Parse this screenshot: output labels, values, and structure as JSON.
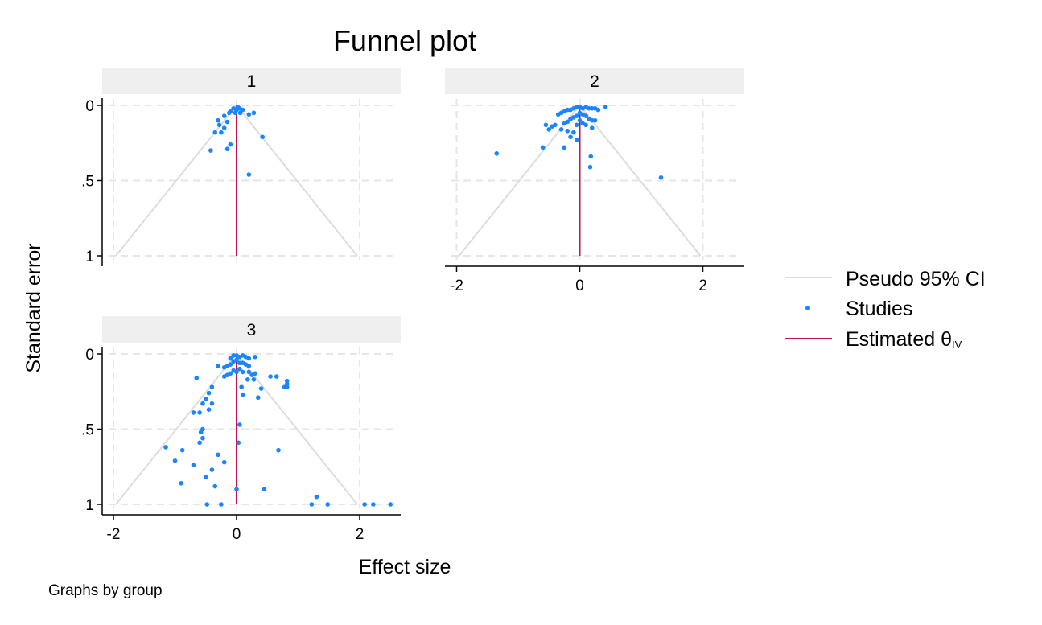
{
  "chart_data": {
    "type": "scatter",
    "title": "Funnel plot",
    "xlabel": "Effect size",
    "ylabel": "Standard error",
    "note": "Graphs by group",
    "xlim": [
      -2.1,
      2.7
    ],
    "ylim": [
      1,
      0
    ],
    "x_ticks": [
      "-2",
      "0",
      "2"
    ],
    "y_ticks": [
      "0",
      ".5",
      "1"
    ],
    "x_tick_values": [
      -2,
      0,
      2
    ],
    "y_tick_values": [
      0,
      0.5,
      1
    ],
    "grid": true,
    "legend_position": "right",
    "legend": {
      "ci_label": "Pseudo 95% CI",
      "studies_label": "Studies",
      "estimate_label": "Estimated θ",
      "estimate_subscript": "IV"
    },
    "colors": {
      "ci": "#dcdcdc",
      "studies": "#1a85ff",
      "estimate": "#c4124d",
      "strip": "#efefef",
      "grid": "#e6e6e6"
    },
    "panels": [
      {
        "group": "1",
        "estimate": 0.0,
        "points": [
          [
            0.02,
            0.01
          ],
          [
            -0.05,
            0.02
          ],
          [
            0.05,
            0.02
          ],
          [
            0.0,
            0.03
          ],
          [
            -0.1,
            0.04
          ],
          [
            0.1,
            0.03
          ],
          [
            -0.02,
            0.05
          ],
          [
            0.06,
            0.05
          ],
          [
            -0.12,
            0.05
          ],
          [
            0.28,
            0.05
          ],
          [
            0.2,
            0.06
          ],
          [
            -0.2,
            0.07
          ],
          [
            -0.3,
            0.1
          ],
          [
            -0.15,
            0.11
          ],
          [
            -0.28,
            0.13
          ],
          [
            -0.2,
            0.15
          ],
          [
            -0.35,
            0.18
          ],
          [
            -0.25,
            0.18
          ],
          [
            0.42,
            0.21
          ],
          [
            -0.1,
            0.26
          ],
          [
            -0.15,
            0.29
          ],
          [
            -0.42,
            0.3
          ],
          [
            0.2,
            0.46
          ]
        ]
      },
      {
        "group": "2",
        "estimate": 0.0,
        "points": [
          [
            0.0,
            0.01
          ],
          [
            -0.05,
            0.01
          ],
          [
            0.05,
            0.02
          ],
          [
            0.1,
            0.01
          ],
          [
            -0.1,
            0.02
          ],
          [
            0.15,
            0.02
          ],
          [
            -0.15,
            0.03
          ],
          [
            0.2,
            0.02
          ],
          [
            0.25,
            0.02
          ],
          [
            0.3,
            0.03
          ],
          [
            0.42,
            0.01
          ],
          [
            -0.2,
            0.03
          ],
          [
            -0.25,
            0.04
          ],
          [
            -0.3,
            0.05
          ],
          [
            -0.35,
            0.06
          ],
          [
            0.0,
            0.05
          ],
          [
            0.05,
            0.06
          ],
          [
            -0.05,
            0.07
          ],
          [
            0.1,
            0.07
          ],
          [
            -0.1,
            0.08
          ],
          [
            0.15,
            0.09
          ],
          [
            -0.15,
            0.09
          ],
          [
            0.2,
            0.1
          ],
          [
            0.25,
            0.1
          ],
          [
            -0.2,
            0.11
          ],
          [
            -0.25,
            0.12
          ],
          [
            0.0,
            0.1
          ],
          [
            0.05,
            0.12
          ],
          [
            -0.05,
            0.13
          ],
          [
            -0.4,
            0.13
          ],
          [
            -0.45,
            0.14
          ],
          [
            -0.55,
            0.13
          ],
          [
            -0.5,
            0.16
          ],
          [
            -0.3,
            0.16
          ],
          [
            -0.2,
            0.17
          ],
          [
            -0.1,
            0.18
          ],
          [
            0.1,
            0.13
          ],
          [
            -0.15,
            0.21
          ],
          [
            -0.05,
            0.23
          ],
          [
            0.2,
            0.15
          ],
          [
            -0.6,
            0.28
          ],
          [
            -0.25,
            0.28
          ],
          [
            -1.35,
            0.32
          ],
          [
            0.18,
            0.34
          ],
          [
            0.17,
            0.41
          ],
          [
            1.32,
            0.48
          ]
        ]
      },
      {
        "group": "3",
        "estimate": 0.0,
        "points": [
          [
            0.0,
            0.01
          ],
          [
            -0.05,
            0.01
          ],
          [
            0.05,
            0.02
          ],
          [
            0.1,
            0.01
          ],
          [
            0.15,
            0.02
          ],
          [
            0.3,
            0.02
          ],
          [
            -0.1,
            0.03
          ],
          [
            0.2,
            0.03
          ],
          [
            0.0,
            0.04
          ],
          [
            -0.05,
            0.05
          ],
          [
            0.05,
            0.06
          ],
          [
            -0.1,
            0.07
          ],
          [
            0.1,
            0.06
          ],
          [
            -0.15,
            0.08
          ],
          [
            0.15,
            0.07
          ],
          [
            -0.2,
            0.09
          ],
          [
            0.2,
            0.08
          ],
          [
            -0.3,
            0.08
          ],
          [
            0.05,
            0.1
          ],
          [
            -0.05,
            0.11
          ],
          [
            0.0,
            0.12
          ],
          [
            0.1,
            0.12
          ],
          [
            -0.1,
            0.13
          ],
          [
            0.2,
            0.12
          ],
          [
            -0.15,
            0.14
          ],
          [
            0.25,
            0.14
          ],
          [
            0.3,
            0.13
          ],
          [
            -0.2,
            0.15
          ],
          [
            0.55,
            0.15
          ],
          [
            0.65,
            0.15
          ],
          [
            -0.65,
            0.16
          ],
          [
            0.18,
            0.17
          ],
          [
            0.28,
            0.17
          ],
          [
            0.82,
            0.18
          ],
          [
            0.82,
            0.2
          ],
          [
            0.78,
            0.22
          ],
          [
            0.82,
            0.22
          ],
          [
            -0.4,
            0.22
          ],
          [
            0.08,
            0.22
          ],
          [
            0.4,
            0.23
          ],
          [
            0.1,
            0.27
          ],
          [
            -0.45,
            0.26
          ],
          [
            0.35,
            0.29
          ],
          [
            -0.5,
            0.3
          ],
          [
            -0.4,
            0.33
          ],
          [
            -0.55,
            0.33
          ],
          [
            -0.45,
            0.37
          ],
          [
            -0.7,
            0.39
          ],
          [
            -0.6,
            0.39
          ],
          [
            0.05,
            0.47
          ],
          [
            -0.55,
            0.5
          ],
          [
            -0.58,
            0.52
          ],
          [
            -0.55,
            0.56
          ],
          [
            -0.6,
            0.59
          ],
          [
            0.03,
            0.59
          ],
          [
            -1.15,
            0.62
          ],
          [
            -0.88,
            0.64
          ],
          [
            0.68,
            0.64
          ],
          [
            -0.3,
            0.67
          ],
          [
            -1.0,
            0.71
          ],
          [
            -0.2,
            0.72
          ],
          [
            -0.7,
            0.74
          ],
          [
            -0.4,
            0.77
          ],
          [
            -0.5,
            0.82
          ],
          [
            -0.9,
            0.86
          ],
          [
            -0.35,
            0.88
          ],
          [
            0.0,
            0.9
          ],
          [
            0.45,
            0.9
          ],
          [
            1.3,
            0.95
          ],
          [
            -0.48,
            1.0
          ],
          [
            -0.25,
            1.0
          ],
          [
            1.22,
            1.0
          ],
          [
            1.48,
            1.0
          ],
          [
            2.08,
            1.0
          ],
          [
            2.22,
            1.0
          ],
          [
            2.5,
            1.0
          ]
        ]
      }
    ]
  }
}
